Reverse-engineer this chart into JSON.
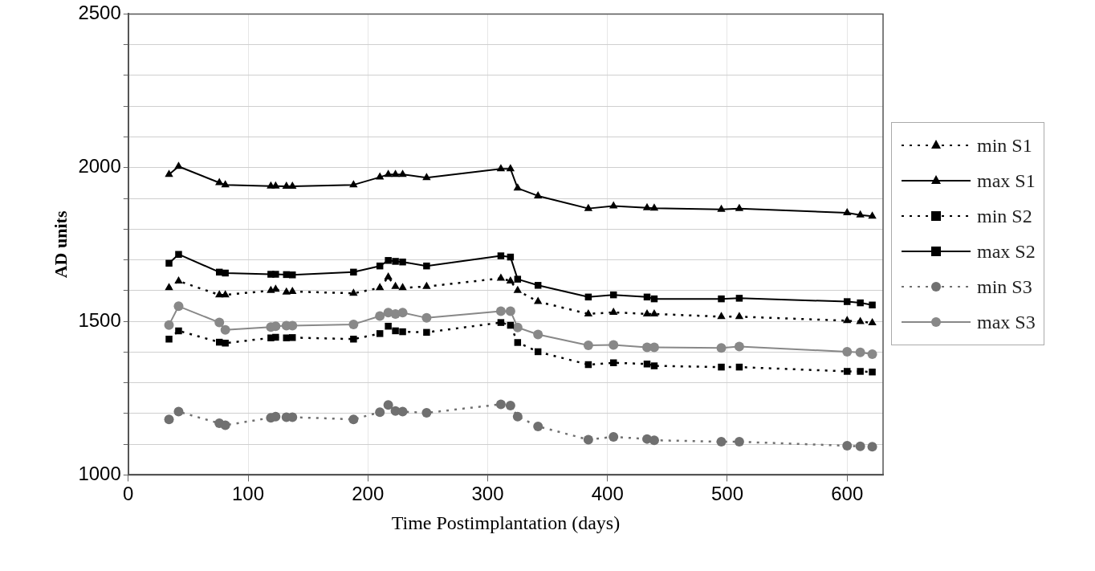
{
  "chart_data": {
    "type": "line",
    "xlabel": "Time Postimplantation (days)",
    "ylabel": "AD units",
    "x": [
      34,
      42,
      76,
      81,
      119,
      123,
      132,
      137,
      188,
      210,
      217,
      223,
      229,
      249,
      311,
      319,
      325,
      342,
      384,
      405,
      433,
      439,
      495,
      510,
      600,
      611,
      621
    ],
    "xlim": [
      0,
      630
    ],
    "xticks": [
      0,
      100,
      200,
      300,
      400,
      500,
      600
    ],
    "ylim": [
      1000,
      2500
    ],
    "yticks": [
      1000,
      {
        "value": 1100,
        "label": null
      },
      {
        "value": 1200,
        "label": null
      },
      {
        "value": 1300,
        "label": null
      },
      {
        "value": 1400,
        "label": null
      },
      1500,
      {
        "value": 1600,
        "label": null
      },
      {
        "value": 1700,
        "label": null
      },
      {
        "value": 1800,
        "label": null
      },
      {
        "value": 1900,
        "label": null
      },
      2000,
      {
        "value": 2100,
        "label": null
      },
      {
        "value": 2200,
        "label": null
      },
      {
        "value": 2300,
        "label": null
      },
      {
        "value": 2400,
        "label": null
      },
      2500
    ],
    "grid": true,
    "legend": "right",
    "series": [
      {
        "name": "min S1",
        "color": "#000000",
        "marker": "triangle",
        "line_style": "dotted",
        "values": [
          1609,
          1631,
          1586,
          1586,
          1600,
          1604,
          1595,
          1597,
          1591,
          1609,
          1644,
          1613,
          1609,
          1613,
          1640,
          1631,
          1600,
          1564,
          1524,
          1529,
          1524,
          1524,
          1515,
          1515,
          1502,
          1499,
          1495
        ]
      },
      {
        "name": "max S1",
        "color": "#000000",
        "marker": "triangle",
        "line_style": "solid",
        "values": [
          1978,
          2004,
          1951,
          1944,
          1940,
          1940,
          1939,
          1939,
          1944,
          1969,
          1978,
          1978,
          1978,
          1967,
          1996,
          1996,
          1933,
          1908,
          1867,
          1875,
          1869,
          1868,
          1864,
          1867,
          1853,
          1846,
          1842
        ]
      },
      {
        "name": "min S2",
        "color": "#000000",
        "marker": "square",
        "line_style": "dotted",
        "values": [
          1442,
          1469,
          1432,
          1429,
          1446,
          1448,
          1446,
          1447,
          1442,
          1460,
          1484,
          1469,
          1466,
          1464,
          1496,
          1487,
          1431,
          1401,
          1359,
          1365,
          1361,
          1355,
          1351,
          1351,
          1337,
          1337,
          1335
        ]
      },
      {
        "name": "max S2",
        "color": "#000000",
        "marker": "square",
        "line_style": "solid",
        "values": [
          1689,
          1718,
          1660,
          1657,
          1653,
          1653,
          1652,
          1651,
          1660,
          1680,
          1698,
          1695,
          1693,
          1680,
          1713,
          1709,
          1637,
          1617,
          1579,
          1586,
          1579,
          1573,
          1573,
          1575,
          1564,
          1560,
          1553
        ]
      },
      {
        "name": "min S3",
        "color": "#707070",
        "marker": "circle",
        "line_style": "dotted",
        "values": [
          1181,
          1206,
          1168,
          1162,
          1186,
          1190,
          1188,
          1188,
          1181,
          1204,
          1228,
          1208,
          1206,
          1202,
          1230,
          1226,
          1190,
          1158,
          1115,
          1124,
          1117,
          1113,
          1108,
          1108,
          1095,
          1093,
          1092
        ]
      },
      {
        "name": "max S3",
        "color": "#888888",
        "marker": "circle",
        "line_style": "solid",
        "values": [
          1488,
          1549,
          1496,
          1472,
          1481,
          1484,
          1486,
          1486,
          1490,
          1517,
          1528,
          1524,
          1528,
          1511,
          1533,
          1533,
          1480,
          1457,
          1422,
          1423,
          1415,
          1415,
          1413,
          1418,
          1401,
          1399,
          1393
        ]
      }
    ]
  }
}
